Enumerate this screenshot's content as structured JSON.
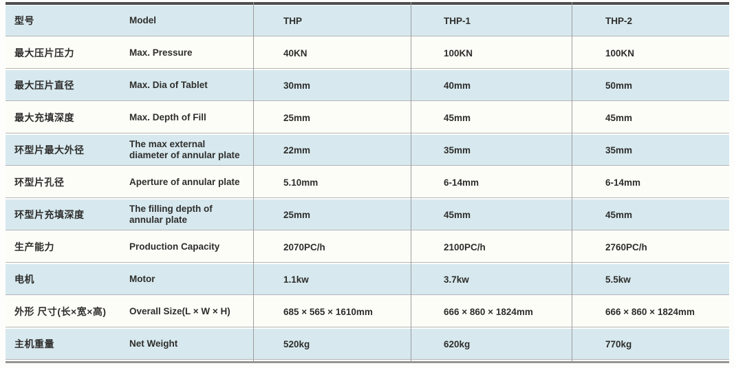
{
  "table": {
    "header": {
      "cn": "型号",
      "en": "Model",
      "thp": "THP",
      "thp1": "THP-1",
      "thp2": "THP-2"
    },
    "rows": [
      {
        "cn": "最大压片压力",
        "en": "Max. Pressure",
        "thp": "40KN",
        "thp1": "100KN",
        "thp2": "100KN"
      },
      {
        "cn": "最大压片直径",
        "en": "Max. Dia of Tablet",
        "thp": "30mm",
        "thp1": "40mm",
        "thp2": "50mm"
      },
      {
        "cn": "最大充填深度",
        "en": "Max. Depth of Fill",
        "thp": "25mm",
        "thp1": "45mm",
        "thp2": "45mm"
      },
      {
        "cn": "环型片最大外径",
        "en": "The max external diameter of annular plate",
        "thp": "22mm",
        "thp1": "35mm",
        "thp2": "35mm"
      },
      {
        "cn": "环型片孔径",
        "en": "Aperture of annular plate",
        "thp": "5.10mm",
        "thp1": "6-14mm",
        "thp2": "6-14mm"
      },
      {
        "cn": "环型片充填深度",
        "en": "The filling depth of annular plate",
        "thp": "25mm",
        "thp1": "45mm",
        "thp2": "45mm"
      },
      {
        "cn": "生产能力",
        "en": "Production Capacity",
        "thp": "2070PC/h",
        "thp1": "2100PC/h",
        "thp2": "2760PC/h"
      },
      {
        "cn": "电机",
        "en": "Motor",
        "thp": "1.1kw",
        "thp1": "3.7kw",
        "thp2": "5.5kw"
      },
      {
        "cn": "外形 尺寸(长×宽×高)",
        "en": "Overall Size(L × W × H)",
        "thp": "685 × 565 × 1610mm",
        "thp1": "666 × 860 × 1824mm",
        "thp2": "666 × 860 × 1824mm"
      },
      {
        "cn": "主机重量",
        "en": "Net Weight",
        "thp": "520kg",
        "thp1": "620kg",
        "thp2": "770kg"
      }
    ]
  },
  "chart_data": {
    "type": "table",
    "columns": [
      "型号",
      "Model",
      "THP",
      "THP-1",
      "THP-2"
    ],
    "rows": [
      [
        "最大压片压力",
        "Max. Pressure",
        "40KN",
        "100KN",
        "100KN"
      ],
      [
        "最大压片直径",
        "Max. Dia of Tablet",
        "30mm",
        "40mm",
        "50mm"
      ],
      [
        "最大充填深度",
        "Max. Depth of Fill",
        "25mm",
        "45mm",
        "45mm"
      ],
      [
        "环型片最大外径",
        "The max external diameter of annular plate",
        "22mm",
        "35mm",
        "35mm"
      ],
      [
        "环型片孔径",
        "Aperture of annular plate",
        "5.10mm",
        "6-14mm",
        "6-14mm"
      ],
      [
        "环型片充填深度",
        "The filling depth of annular plate",
        "25mm",
        "45mm",
        "45mm"
      ],
      [
        "生产能力",
        "Production Capacity",
        "2070PC/h",
        "2100PC/h",
        "2760PC/h"
      ],
      [
        "电机",
        "Motor",
        "1.1kw",
        "3.7kw",
        "5.5kw"
      ],
      [
        "外形 尺寸(长×宽×高)",
        "Overall Size(L × W × H)",
        "685 × 565 × 1610mm",
        "666 × 860 × 1824mm",
        "666 × 860 × 1824mm"
      ],
      [
        "主机重量",
        "Net Weight",
        "520kg",
        "620kg",
        "770kg"
      ]
    ]
  },
  "colors": {
    "row_blue": "#d7e9ef",
    "row_white": "#fdfdf8",
    "top_border": "#4e4e50",
    "bottom_border": "#949494",
    "divider": "#9c9c9c",
    "row_line": "#b6b6b6",
    "text": "#2e2d2b"
  }
}
